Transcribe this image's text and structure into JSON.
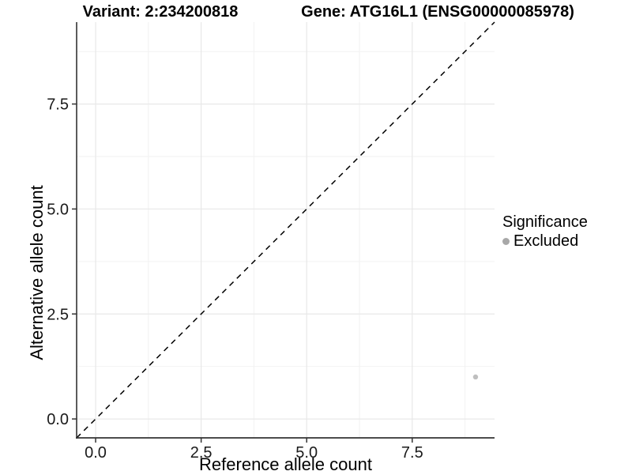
{
  "header": {
    "variant_title": "Variant: 2:234200818",
    "gene_title": "Gene: ATG16L1 (ENSG00000085978)"
  },
  "legend": {
    "title": "Significance",
    "items": [
      {
        "label": "Excluded",
        "color": "#a8a8a8"
      }
    ]
  },
  "chart_data": {
    "type": "scatter",
    "title": "Variant: 2:234200818 / Gene: ATG16L1 (ENSG00000085978)",
    "xlabel": "Reference allele count",
    "ylabel": "Alternative allele count",
    "xlim": [
      -0.45,
      9.45
    ],
    "ylim": [
      -0.45,
      9.45
    ],
    "x_ticks": [
      0,
      2.5,
      5,
      7.5
    ],
    "x_tick_labels": [
      "0.0",
      "2.5",
      "5.0",
      "7.5"
    ],
    "y_ticks": [
      0,
      2.5,
      5,
      7.5
    ],
    "y_tick_labels": [
      "0.0",
      "2.5",
      "5.0",
      "7.5"
    ],
    "x_minor_ticks": [
      1.25,
      3.75,
      6.25,
      8.75
    ],
    "y_minor_ticks": [
      1.25,
      3.75,
      6.25,
      8.75
    ],
    "grid": true,
    "legend_position": "right",
    "legend_title": "Significance",
    "series": [
      {
        "name": "Excluded",
        "color": "#bfbfbf",
        "points": [
          {
            "x": 9,
            "y": 1
          }
        ]
      }
    ],
    "reference_line": {
      "type": "identity",
      "slope": 1,
      "intercept": 0,
      "style": "dashed",
      "color": "#000000"
    },
    "style": {
      "background": "#ffffff",
      "grid_major": "#e8e8e8",
      "grid_minor": "#f2f2f2",
      "axis_line": "#333333",
      "tick_mark": "#333333",
      "tick_label_color": "#1a1a1a"
    }
  }
}
